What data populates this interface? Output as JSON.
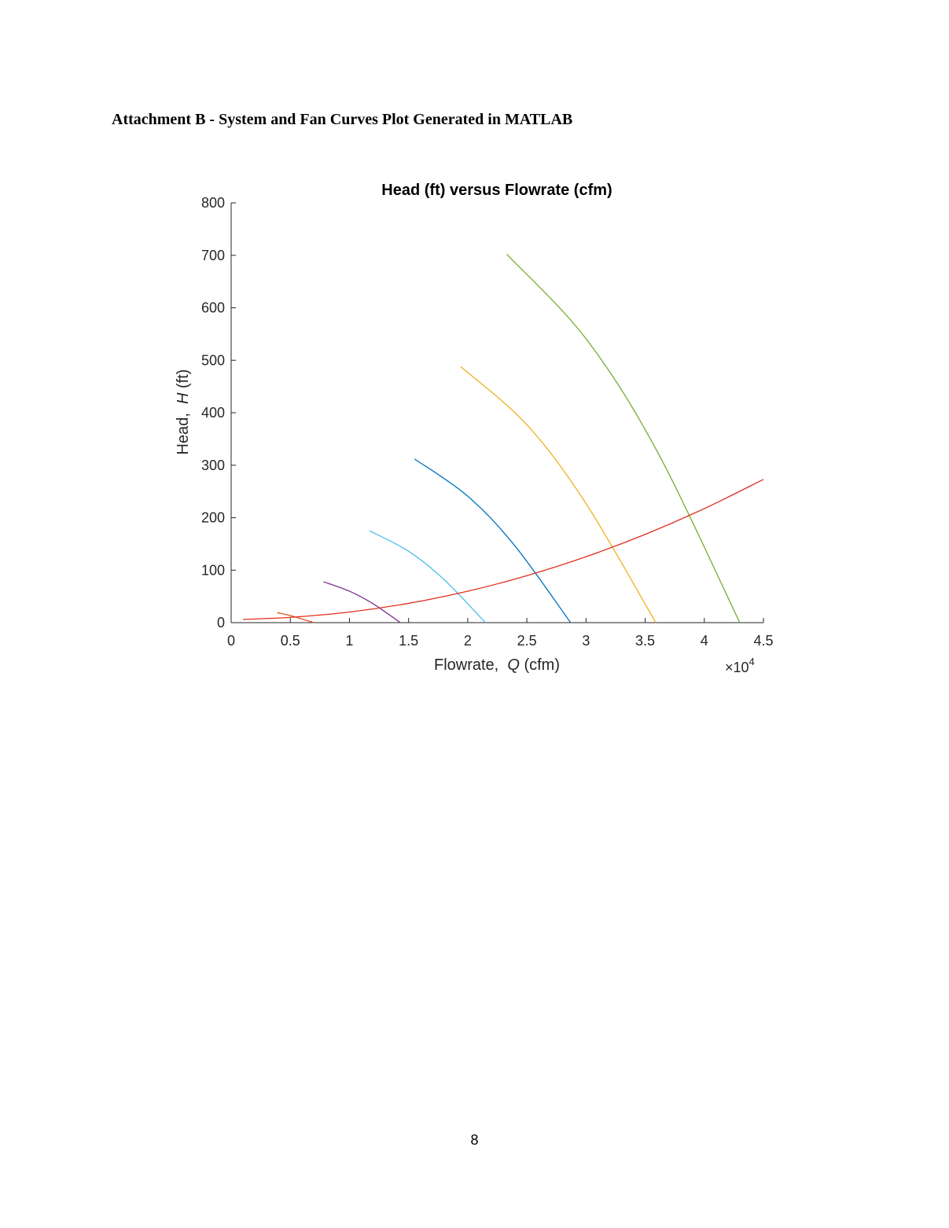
{
  "page": {
    "heading": "Attachment B - System and Fan Curves Plot Generated in MATLAB",
    "page_number": "8"
  },
  "chart_data": {
    "type": "line",
    "title": "Head (ft) versus Flowrate (cfm)",
    "xlabel": "Flowrate,  Q (cfm)",
    "xlabel_parts": [
      "Flowrate,  ",
      "Q",
      " (cfm)"
    ],
    "ylabel": "Head,  H (ft)",
    "ylabel_parts": [
      "Head,  ",
      "H",
      " (ft)"
    ],
    "x_exponent_label": "×10",
    "x_exponent_power": "4",
    "x_exponent": 4,
    "xlim": [
      0,
      45000
    ],
    "ylim": [
      0,
      800
    ],
    "x_ticks": [
      0,
      5000,
      10000,
      15000,
      20000,
      25000,
      30000,
      35000,
      40000,
      45000
    ],
    "x_tick_labels": [
      "0",
      "0.5",
      "1",
      "1.5",
      "2",
      "2.5",
      "3",
      "3.5",
      "4",
      "4.5"
    ],
    "y_ticks": [
      0,
      100,
      200,
      300,
      400,
      500,
      600,
      700,
      800
    ],
    "y_tick_labels": [
      "0",
      "100",
      "200",
      "300",
      "400",
      "500",
      "600",
      "700",
      "800"
    ],
    "grid": false,
    "legend": "none",
    "series": [
      {
        "color": "#D95319",
        "x": [
          3900,
          5000,
          6000,
          7000
        ],
        "y": [
          19,
          13.5,
          6.8,
          0
        ]
      },
      {
        "color": "#7E2F8E",
        "x": [
          7800,
          10000,
          12000,
          14300
        ],
        "y": [
          78,
          60,
          36,
          0
        ]
      },
      {
        "color": "#4DBEEE",
        "x": [
          11700,
          15000,
          18000,
          21500
        ],
        "y": [
          175,
          136,
          82,
          0
        ]
      },
      {
        "color": "#0072BD",
        "x": [
          15500,
          20000,
          24000,
          28700
        ],
        "y": [
          312,
          241,
          146,
          0
        ]
      },
      {
        "color": "#EDB120",
        "x": [
          19400,
          25000,
          30000,
          35900
        ],
        "y": [
          488,
          377,
          227,
          0
        ]
      },
      {
        "color": "#77AC30",
        "x": [
          23300,
          30000,
          36000,
          43000
        ],
        "y": [
          702,
          541,
          327,
          0
        ]
      },
      {
        "color": "#E0301E",
        "x": [
          1000,
          5000,
          10000,
          15000,
          20000,
          25000,
          30000,
          35000,
          40000,
          45000
        ],
        "y": [
          6.2,
          10.1,
          20.2,
          36.8,
          59.9,
          89.5,
          125.6,
          168.2,
          217.3,
          272.9
        ]
      }
    ]
  }
}
